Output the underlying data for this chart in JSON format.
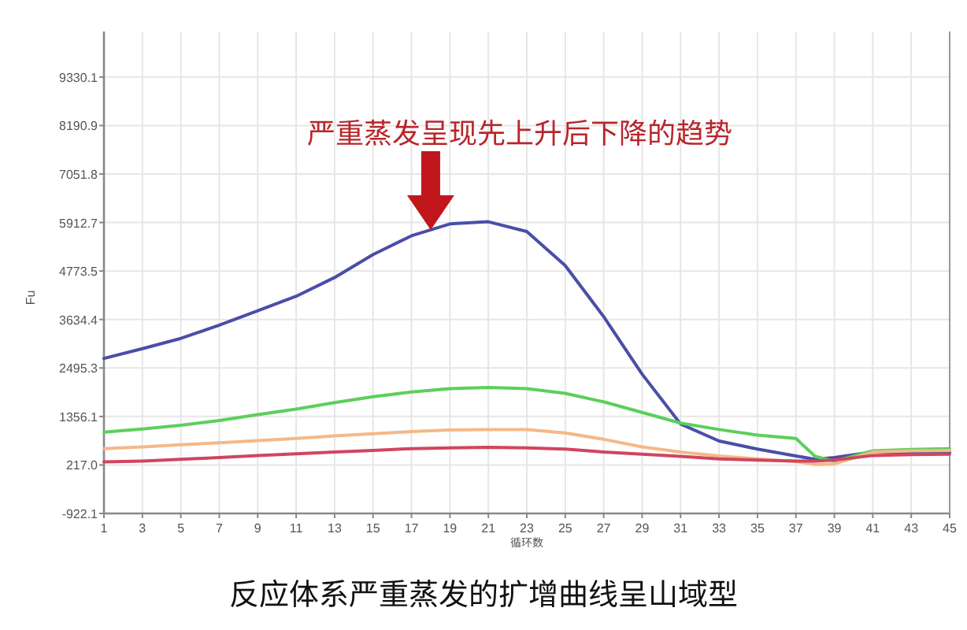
{
  "chart_data": {
    "type": "line",
    "title": "反应体系严重蒸发的扩增曲线呈山域型",
    "xlabel": "循环数",
    "ylabel": "Fu",
    "annotations": [
      {
        "text": "严重蒸发呈现先上升后下降的趋势",
        "x": 18,
        "y": 5740
      }
    ],
    "x": [
      1,
      3,
      5,
      7,
      9,
      11,
      13,
      15,
      17,
      19,
      21,
      23,
      25,
      27,
      29,
      31,
      33,
      35,
      37,
      38,
      39,
      41,
      43,
      45
    ],
    "series": [
      {
        "color": "#4a4ea8",
        "values": [
          2720,
          2950,
          3190,
          3500,
          3840,
          4180,
          4620,
          5160,
          5600,
          5880,
          5930,
          5700,
          4900,
          3700,
          2350,
          1180,
          780,
          590,
          430,
          350,
          390,
          520,
          520,
          510
        ]
      },
      {
        "color": "#5ccf5c",
        "values": [
          990,
          1060,
          1150,
          1260,
          1400,
          1530,
          1680,
          1820,
          1930,
          2010,
          2040,
          2010,
          1900,
          1700,
          1450,
          1200,
          1050,
          920,
          840,
          420,
          300,
          550,
          580,
          600
        ]
      },
      {
        "color": "#f5b887",
        "values": [
          600,
          640,
          690,
          740,
          790,
          840,
          900,
          950,
          1000,
          1040,
          1050,
          1050,
          970,
          820,
          640,
          520,
          430,
          360,
          300,
          230,
          240,
          520,
          550,
          560
        ]
      },
      {
        "color": "#d0455f",
        "values": [
          290,
          310,
          350,
          390,
          440,
          480,
          520,
          560,
          600,
          620,
          630,
          620,
          590,
          520,
          470,
          420,
          360,
          330,
          310,
          310,
          330,
          440,
          460,
          470
        ]
      }
    ],
    "xlim": [
      1,
      45
    ],
    "xticks": [
      1,
      3,
      5,
      7,
      9,
      11,
      13,
      15,
      17,
      19,
      21,
      23,
      25,
      27,
      29,
      31,
      33,
      35,
      37,
      39,
      41,
      43,
      45
    ],
    "ylim": [
      -922.1,
      10400
    ],
    "yticks": [
      -922.1,
      {
        "value": 217,
        "label": "217.0"
      },
      1356.1,
      2495.3,
      3634.4,
      4773.5,
      5912.7,
      7051.8,
      8190.9,
      9330.1
    ],
    "grid": true
  }
}
